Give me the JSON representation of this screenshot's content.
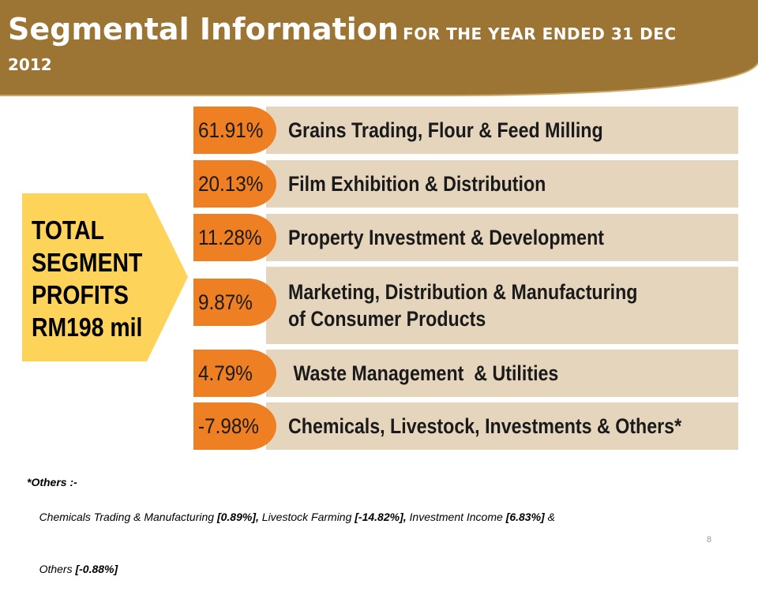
{
  "header": {
    "title": "Segmental Information",
    "subtitle": "FOR THE YEAR ENDED 31 DEC",
    "year": "2012"
  },
  "total": {
    "lines": [
      "TOTAL",
      "SEGMENT",
      "PROFITS",
      "RM198 mil"
    ]
  },
  "segments": [
    {
      "percent": "61.91%",
      "lines": [
        "Grains Trading, Flour & Feed Milling"
      ]
    },
    {
      "percent": "20.13%",
      "lines": [
        "Film Exhibition & Distribution"
      ]
    },
    {
      "percent": "11.28%",
      "lines": [
        "Property Investment & Development"
      ]
    },
    {
      "percent": "9.87%",
      "lines": [
        "Marketing, Distribution & Manufacturing",
        "of Consumer Products"
      ]
    },
    {
      "percent": "4.79%",
      "lines": [
        " Waste Management  & Utilities"
      ]
    },
    {
      "percent": "-7.98%",
      "lines": [
        "Chemicals, Livestock, Investments & Others*"
      ]
    }
  ],
  "footnote": {
    "heading": "*Others :-",
    "item1_name": "Chemicals Trading & Manufacturing ",
    "item1_value": "[0.89%],",
    "item2_name": " Livestock Farming ",
    "item2_value": "[-14.82%],",
    "item3_name": " Investment Income ",
    "item3_value": "[6.83%]",
    "connector": " &",
    "item4_name": "Others ",
    "item4_value": "[-0.88%]"
  },
  "page_number": "8",
  "colors": {
    "banner": "#9c7535",
    "pill": "#ee7f22",
    "segment_box": "#e5d5bd",
    "arrow": "#fdd35a"
  }
}
